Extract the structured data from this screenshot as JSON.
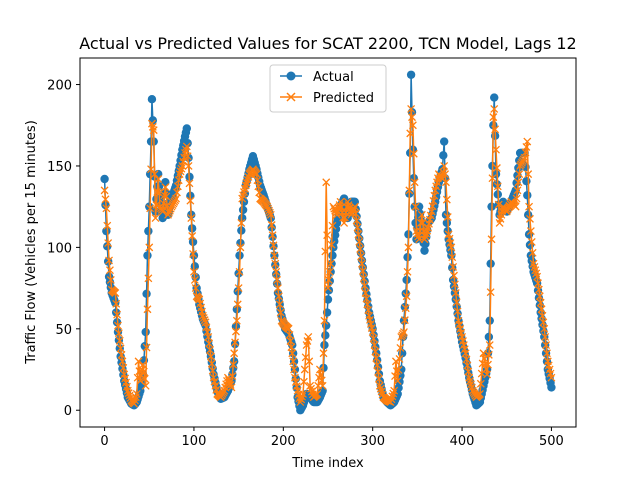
{
  "chart_data": {
    "type": "line",
    "title": "Actual vs Predicted Values for SCAT 2200, TCN Model, Lags 12",
    "xlabel": "Time index",
    "ylabel": "Traffic Flow (Vehicles per 15 minutes)",
    "xlim": [
      -27.5,
      527.5
    ],
    "ylim": [
      -10.3,
      216.3
    ],
    "xticks": [
      0,
      100,
      200,
      300,
      400,
      500
    ],
    "yticks": [
      0,
      50,
      100,
      150,
      200
    ],
    "legend": "upper-center",
    "grid": false,
    "series": [
      {
        "name": "Actual",
        "color": "#1f77b4",
        "marker": "circle",
        "keypoints": [
          [
            0,
            142
          ],
          [
            2,
            110
          ],
          [
            5,
            82
          ],
          [
            8,
            72
          ],
          [
            12,
            66
          ],
          [
            15,
            48
          ],
          [
            18,
            33
          ],
          [
            22,
            18
          ],
          [
            26,
            8
          ],
          [
            30,
            4
          ],
          [
            33,
            3
          ],
          [
            36,
            5
          ],
          [
            40,
            12
          ],
          [
            43,
            22
          ],
          [
            46,
            48
          ],
          [
            48,
            95
          ],
          [
            50,
            125
          ],
          [
            52,
            165
          ],
          [
            53,
            191
          ],
          [
            55,
            165
          ],
          [
            57,
            122
          ],
          [
            60,
            145
          ],
          [
            62,
            130
          ],
          [
            65,
            118
          ],
          [
            68,
            140
          ],
          [
            71,
            120
          ],
          [
            75,
            130
          ],
          [
            80,
            138
          ],
          [
            84,
            150
          ],
          [
            87,
            160
          ],
          [
            90,
            168
          ],
          [
            92,
            173
          ],
          [
            94,
            155
          ],
          [
            97,
            120
          ],
          [
            100,
            95
          ],
          [
            103,
            75
          ],
          [
            106,
            65
          ],
          [
            110,
            56
          ],
          [
            113,
            52
          ],
          [
            116,
            42
          ],
          [
            119,
            33
          ],
          [
            122,
            22
          ],
          [
            126,
            12
          ],
          [
            130,
            7
          ],
          [
            134,
            8
          ],
          [
            138,
            12
          ],
          [
            142,
            18
          ],
          [
            145,
            30
          ],
          [
            148,
            62
          ],
          [
            151,
            95
          ],
          [
            154,
            118
          ],
          [
            158,
            138
          ],
          [
            162,
            148
          ],
          [
            166,
            156
          ],
          [
            170,
            148
          ],
          [
            174,
            138
          ],
          [
            178,
            132
          ],
          [
            182,
            125
          ],
          [
            186,
            118
          ],
          [
            190,
            95
          ],
          [
            194,
            72
          ],
          [
            198,
            58
          ],
          [
            202,
            50
          ],
          [
            206,
            47
          ],
          [
            210,
            40
          ],
          [
            213,
            25
          ],
          [
            216,
            8
          ],
          [
            219,
            0
          ],
          [
            222,
            3
          ],
          [
            226,
            10
          ],
          [
            230,
            8
          ],
          [
            234,
            5
          ],
          [
            238,
            5
          ],
          [
            241,
            8
          ],
          [
            244,
            12
          ],
          [
            246,
            40
          ],
          [
            248,
            52
          ],
          [
            250,
            68
          ],
          [
            253,
            85
          ],
          [
            256,
            100
          ],
          [
            260,
            115
          ],
          [
            264,
            125
          ],
          [
            268,
            130
          ],
          [
            272,
            118
          ],
          [
            276,
            128
          ],
          [
            280,
            128
          ],
          [
            284,
            110
          ],
          [
            288,
            92
          ],
          [
            292,
            75
          ],
          [
            296,
            60
          ],
          [
            300,
            50
          ],
          [
            304,
            35
          ],
          [
            308,
            18
          ],
          [
            312,
            8
          ],
          [
            316,
            5
          ],
          [
            320,
            3
          ],
          [
            324,
            5
          ],
          [
            328,
            10
          ],
          [
            332,
            25
          ],
          [
            335,
            55
          ],
          [
            338,
            80
          ],
          [
            340,
            108
          ],
          [
            342,
            158
          ],
          [
            343,
            206
          ],
          [
            345,
            160
          ],
          [
            347,
            125
          ],
          [
            349,
            105
          ],
          [
            352,
            125
          ],
          [
            355,
            112
          ],
          [
            358,
            98
          ],
          [
            362,
            115
          ],
          [
            366,
            118
          ],
          [
            370,
            128
          ],
          [
            374,
            140
          ],
          [
            378,
            148
          ],
          [
            380,
            165
          ],
          [
            382,
            120
          ],
          [
            385,
            105
          ],
          [
            388,
            95
          ],
          [
            390,
            80
          ],
          [
            393,
            68
          ],
          [
            396,
            55
          ],
          [
            400,
            42
          ],
          [
            404,
            32
          ],
          [
            408,
            20
          ],
          [
            412,
            10
          ],
          [
            416,
            3
          ],
          [
            420,
            5
          ],
          [
            424,
            15
          ],
          [
            428,
            25
          ],
          [
            431,
            55
          ],
          [
            433,
            125
          ],
          [
            435,
            175
          ],
          [
            436,
            192
          ],
          [
            438,
            145
          ],
          [
            442,
            120
          ],
          [
            446,
            128
          ],
          [
            450,
            122
          ],
          [
            455,
            128
          ],
          [
            460,
            135
          ],
          [
            465,
            158
          ],
          [
            470,
            158
          ],
          [
            473,
            132
          ],
          [
            475,
            108
          ],
          [
            477,
            95
          ],
          [
            480,
            85
          ],
          [
            484,
            78
          ],
          [
            488,
            60
          ],
          [
            492,
            45
          ],
          [
            496,
            25
          ],
          [
            500,
            14
          ]
        ]
      },
      {
        "name": "Predicted",
        "color": "#ff7f0e",
        "marker": "x",
        "keypoints": [
          [
            0,
            135
          ],
          [
            2,
            124
          ],
          [
            5,
            92
          ],
          [
            8,
            74
          ],
          [
            12,
            72
          ],
          [
            15,
            52
          ],
          [
            18,
            38
          ],
          [
            22,
            22
          ],
          [
            26,
            12
          ],
          [
            30,
            6
          ],
          [
            33,
            4
          ],
          [
            36,
            10
          ],
          [
            38,
            30
          ],
          [
            40,
            18
          ],
          [
            43,
            28
          ],
          [
            46,
            15
          ],
          [
            48,
            62
          ],
          [
            50,
            100
          ],
          [
            52,
            148
          ],
          [
            53,
            176
          ],
          [
            55,
            172
          ],
          [
            57,
            118
          ],
          [
            60,
            142
          ],
          [
            62,
            125
          ],
          [
            65,
            122
          ],
          [
            68,
            137
          ],
          [
            71,
            120
          ],
          [
            75,
            125
          ],
          [
            80,
            130
          ],
          [
            84,
            145
          ],
          [
            87,
            150
          ],
          [
            90,
            158
          ],
          [
            92,
            162
          ],
          [
            94,
            150
          ],
          [
            97,
            118
          ],
          [
            100,
            85
          ],
          [
            103,
            70
          ],
          [
            106,
            68
          ],
          [
            110,
            58
          ],
          [
            113,
            54
          ],
          [
            116,
            45
          ],
          [
            119,
            33
          ],
          [
            122,
            20
          ],
          [
            126,
            10
          ],
          [
            130,
            8
          ],
          [
            134,
            12
          ],
          [
            138,
            20
          ],
          [
            142,
            14
          ],
          [
            145,
            35
          ],
          [
            148,
            55
          ],
          [
            151,
            85
          ],
          [
            154,
            130
          ],
          [
            158,
            138
          ],
          [
            162,
            145
          ],
          [
            166,
            148
          ],
          [
            170,
            145
          ],
          [
            174,
            130
          ],
          [
            178,
            128
          ],
          [
            182,
            125
          ],
          [
            186,
            120
          ],
          [
            190,
            95
          ],
          [
            194,
            75
          ],
          [
            198,
            55
          ],
          [
            202,
            52
          ],
          [
            206,
            50
          ],
          [
            210,
            35
          ],
          [
            213,
            20
          ],
          [
            216,
            12
          ],
          [
            219,
            5
          ],
          [
            222,
            10
          ],
          [
            226,
            40
          ],
          [
            228,
            45
          ],
          [
            230,
            15
          ],
          [
            234,
            8
          ],
          [
            238,
            10
          ],
          [
            241,
            25
          ],
          [
            244,
            15
          ],
          [
            246,
            55
          ],
          [
            248,
            140
          ],
          [
            250,
            75
          ],
          [
            253,
            90
          ],
          [
            256,
            125
          ],
          [
            260,
            120
          ],
          [
            264,
            128
          ],
          [
            268,
            115
          ],
          [
            272,
            128
          ],
          [
            276,
            120
          ],
          [
            280,
            125
          ],
          [
            284,
            108
          ],
          [
            288,
            90
          ],
          [
            292,
            72
          ],
          [
            296,
            58
          ],
          [
            300,
            48
          ],
          [
            304,
            32
          ],
          [
            308,
            15
          ],
          [
            312,
            8
          ],
          [
            316,
            6
          ],
          [
            320,
            5
          ],
          [
            324,
            12
          ],
          [
            326,
            30
          ],
          [
            328,
            18
          ],
          [
            332,
            45
          ],
          [
            335,
            48
          ],
          [
            338,
            70
          ],
          [
            340,
            100
          ],
          [
            342,
            170
          ],
          [
            343,
            185
          ],
          [
            345,
            175
          ],
          [
            347,
            140
          ],
          [
            349,
            110
          ],
          [
            352,
            105
          ],
          [
            355,
            120
          ],
          [
            358,
            105
          ],
          [
            362,
            112
          ],
          [
            366,
            122
          ],
          [
            370,
            135
          ],
          [
            374,
            145
          ],
          [
            378,
            142
          ],
          [
            380,
            150
          ],
          [
            382,
            140
          ],
          [
            385,
            108
          ],
          [
            388,
            100
          ],
          [
            390,
            88
          ],
          [
            393,
            72
          ],
          [
            396,
            55
          ],
          [
            400,
            45
          ],
          [
            404,
            35
          ],
          [
            408,
            20
          ],
          [
            412,
            12
          ],
          [
            416,
            8
          ],
          [
            420,
            10
          ],
          [
            424,
            35
          ],
          [
            428,
            22
          ],
          [
            431,
            40
          ],
          [
            433,
            105
          ],
          [
            435,
            180
          ],
          [
            436,
            185
          ],
          [
            438,
            160
          ],
          [
            442,
            115
          ],
          [
            446,
            125
          ],
          [
            450,
            122
          ],
          [
            455,
            128
          ],
          [
            460,
            125
          ],
          [
            465,
            150
          ],
          [
            470,
            155
          ],
          [
            473,
            165
          ],
          [
            475,
            125
          ],
          [
            477,
            110
          ],
          [
            480,
            90
          ],
          [
            484,
            82
          ],
          [
            488,
            66
          ],
          [
            492,
            50
          ],
          [
            496,
            30
          ],
          [
            500,
            20
          ]
        ]
      }
    ]
  }
}
